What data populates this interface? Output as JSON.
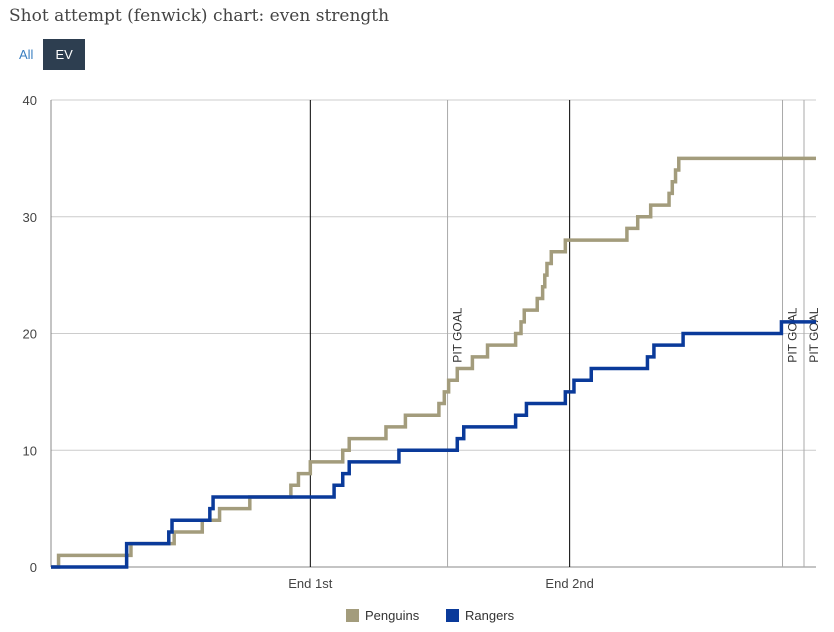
{
  "page": {
    "title": "Shot attempt (fenwick) chart: even strength"
  },
  "filters": {
    "all_label": "All",
    "ev_label": "EV",
    "selected": "EV"
  },
  "colors": {
    "penguins": "#a39c7c",
    "rangers": "#0a3a9a",
    "grid": "#cccccc",
    "period_line": "#000000",
    "goal_line": "#aaaaaa"
  },
  "chart_data": {
    "type": "line",
    "step": true,
    "title": "",
    "xlabel": "",
    "ylabel": "",
    "xlim": [
      0,
      3540
    ],
    "ylim": [
      0,
      40
    ],
    "yticks": [
      "0",
      "10",
      "20",
      "30",
      "40"
    ],
    "grid": true,
    "legend_position": "bottom-center",
    "period_markers": [
      {
        "x": 1200,
        "label": "End 1st"
      },
      {
        "x": 2400,
        "label": "End 2nd"
      }
    ],
    "goal_markers": [
      {
        "x": 1835,
        "label": "PIT GOAL"
      },
      {
        "x": 3385,
        "label": "PIT GOAL"
      },
      {
        "x": 3545,
        "label": "PIT GOAL"
      }
    ],
    "series": [
      {
        "name": "Penguins",
        "color": "#a39c7c",
        "points": [
          [
            0,
            0
          ],
          [
            35,
            1
          ],
          [
            370,
            2
          ],
          [
            570,
            3
          ],
          [
            700,
            4
          ],
          [
            780,
            5
          ],
          [
            920,
            6
          ],
          [
            1110,
            7
          ],
          [
            1145,
            8
          ],
          [
            1200,
            9
          ],
          [
            1350,
            10
          ],
          [
            1380,
            11
          ],
          [
            1550,
            12
          ],
          [
            1640,
            13
          ],
          [
            1795,
            14
          ],
          [
            1820,
            15
          ],
          [
            1840,
            16
          ],
          [
            1880,
            17
          ],
          [
            1950,
            18
          ],
          [
            2020,
            19
          ],
          [
            2150,
            20
          ],
          [
            2175,
            21
          ],
          [
            2190,
            22
          ],
          [
            2250,
            23
          ],
          [
            2275,
            24
          ],
          [
            2285,
            25
          ],
          [
            2295,
            26
          ],
          [
            2315,
            27
          ],
          [
            2380,
            28
          ],
          [
            2400,
            28
          ],
          [
            2480,
            28
          ],
          [
            2665,
            29
          ],
          [
            2715,
            30
          ],
          [
            2735,
            30
          ],
          [
            2775,
            31
          ],
          [
            2860,
            32
          ],
          [
            2875,
            33
          ],
          [
            2890,
            34
          ],
          [
            2905,
            35
          ],
          [
            2960,
            35
          ],
          [
            3540,
            35
          ]
        ]
      },
      {
        "name": "Rangers",
        "color": "#0a3a9a",
        "points": [
          [
            0,
            0
          ],
          [
            350,
            2
          ],
          [
            545,
            3
          ],
          [
            560,
            4
          ],
          [
            735,
            5
          ],
          [
            750,
            6
          ],
          [
            1160,
            6
          ],
          [
            1170,
            6
          ],
          [
            1310,
            7
          ],
          [
            1350,
            8
          ],
          [
            1380,
            9
          ],
          [
            1610,
            10
          ],
          [
            1710,
            10
          ],
          [
            1880,
            11
          ],
          [
            1910,
            12
          ],
          [
            2150,
            13
          ],
          [
            2200,
            14
          ],
          [
            2380,
            15
          ],
          [
            2420,
            16
          ],
          [
            2500,
            17
          ],
          [
            2760,
            18
          ],
          [
            2790,
            19
          ],
          [
            2925,
            20
          ],
          [
            3000,
            20
          ],
          [
            3330,
            20
          ],
          [
            3380,
            21
          ],
          [
            3540,
            21
          ]
        ]
      }
    ]
  }
}
